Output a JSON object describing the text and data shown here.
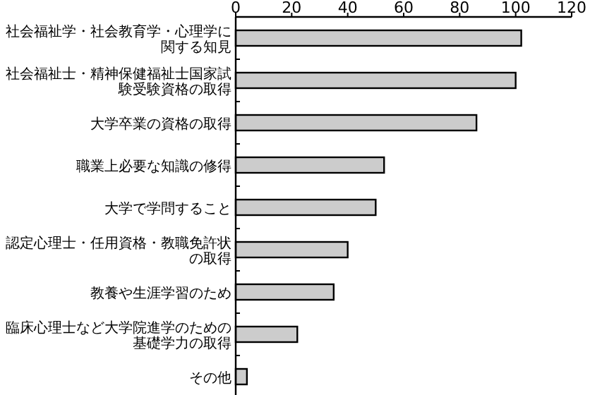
{
  "chart_data": {
    "type": "bar",
    "orientation": "horizontal",
    "categories": [
      "社会福祉学・社会教育学・心理学に関する知見",
      "社会福祉士・精神保健福祉士国家試験受験資格の取得",
      "大学卒業の資格の取得",
      "職業上必要な知識の修得",
      "大学で学問すること",
      "認定心理士・任用資格・教職免許状の取得",
      "教養や生涯学習のため",
      "臨床心理士など大学院進学のための基礎学力の取得",
      "その他"
    ],
    "values": [
      102,
      100,
      86,
      53,
      50,
      40,
      35,
      22,
      4
    ],
    "color": "#cccccc",
    "xlim": [
      0,
      120
    ],
    "xticks": [
      0,
      20,
      40,
      60,
      80,
      100,
      120
    ],
    "grid": false
  }
}
